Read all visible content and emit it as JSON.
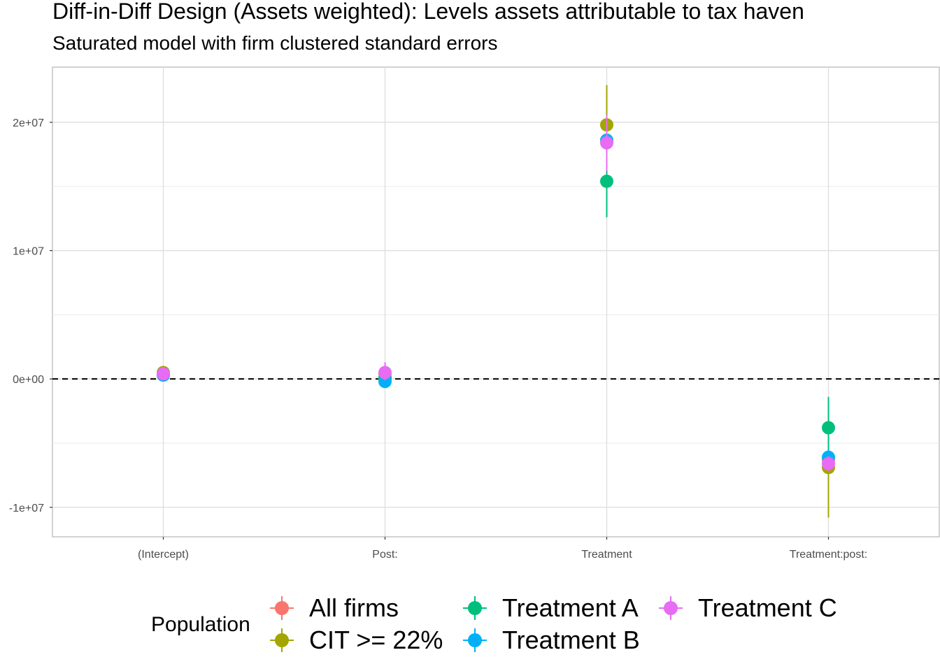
{
  "chart_data": {
    "type": "scatter",
    "title": "Diff-in-Diff Design (Assets weighted): Levels assets attributable to tax haven",
    "subtitle": "Saturated model with firm clustered standard errors",
    "xlabel": "",
    "ylabel": "",
    "categories": [
      "(Intercept)",
      "Post:",
      "Treatment",
      "Treatment:post:"
    ],
    "ylim": [
      -12300000,
      24300000
    ],
    "yticks": [
      -10000000,
      0,
      10000000,
      20000000
    ],
    "ytick_labels": [
      "-1e+07",
      "0e+00",
      "1e+07",
      "2e+07"
    ],
    "reference_line": 0,
    "grid": true,
    "legend_title": "Population",
    "legend_position": "bottom",
    "series": [
      {
        "name": "All firms",
        "color": "#F8766D",
        "points": [
          {
            "category": "(Intercept)",
            "estimate": 300000,
            "low": 150000,
            "high": 450000
          },
          {
            "category": "Post:",
            "estimate": -50000,
            "low": -300000,
            "high": 200000
          },
          {
            "category": "Treatment",
            "estimate": 18600000,
            "low": 18100000,
            "high": 19100000
          },
          {
            "category": "Treatment:post:",
            "estimate": -6300000,
            "low": -6700000,
            "high": -5900000
          }
        ]
      },
      {
        "name": "CIT >= 22%",
        "color": "#A3A500",
        "points": [
          {
            "category": "(Intercept)",
            "estimate": 500000,
            "low": 300000,
            "high": 700000
          },
          {
            "category": "Post:",
            "estimate": 400000,
            "low": -200000,
            "high": 1000000
          },
          {
            "category": "Treatment",
            "estimate": 19800000,
            "low": 16900000,
            "high": 22900000
          },
          {
            "category": "Treatment:post:",
            "estimate": -6900000,
            "low": -10800000,
            "high": -3000000
          }
        ]
      },
      {
        "name": "Treatment A",
        "color": "#00BF7D",
        "points": [
          {
            "category": "(Intercept)",
            "estimate": 400000,
            "low": 250000,
            "high": 550000
          },
          {
            "category": "Post:",
            "estimate": 100000,
            "low": -300000,
            "high": 500000
          },
          {
            "category": "Treatment",
            "estimate": 15400000,
            "low": 12600000,
            "high": 18200000
          },
          {
            "category": "Treatment:post:",
            "estimate": -3800000,
            "low": -6200000,
            "high": -1400000
          }
        ]
      },
      {
        "name": "Treatment B",
        "color": "#00B0F6",
        "points": [
          {
            "category": "(Intercept)",
            "estimate": 300000,
            "low": 150000,
            "high": 450000
          },
          {
            "category": "Post:",
            "estimate": -200000,
            "low": -500000,
            "high": 100000
          },
          {
            "category": "Treatment",
            "estimate": 18600000,
            "low": 17800000,
            "high": 19400000
          },
          {
            "category": "Treatment:post:",
            "estimate": -6100000,
            "low": -6700000,
            "high": -5500000
          }
        ]
      },
      {
        "name": "Treatment C",
        "color": "#E76BF3",
        "points": [
          {
            "category": "(Intercept)",
            "estimate": 400000,
            "low": 250000,
            "high": 550000
          },
          {
            "category": "Post:",
            "estimate": 500000,
            "low": -100000,
            "high": 1300000
          },
          {
            "category": "Treatment",
            "estimate": 18400000,
            "low": 16200000,
            "high": 20600000
          },
          {
            "category": "Treatment:post:",
            "estimate": -6600000,
            "low": -7200000,
            "high": -6000000
          }
        ]
      }
    ],
    "legend_order": [
      "All firms",
      "CIT >= 22%",
      "Treatment A",
      "Treatment B",
      "Treatment C"
    ]
  }
}
